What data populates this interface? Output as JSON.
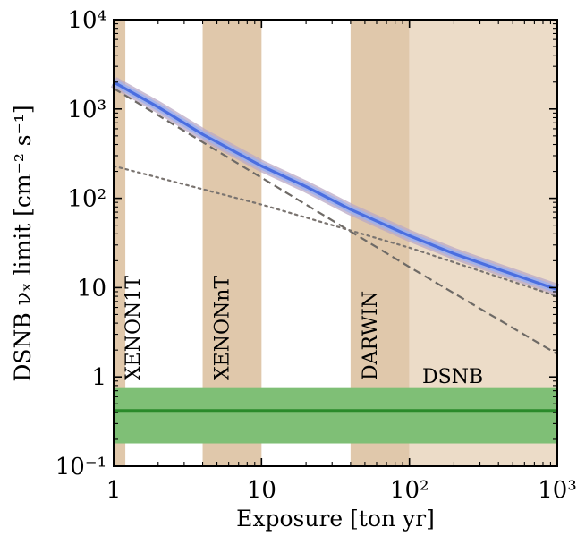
{
  "chart_data": {
    "type": "line",
    "title": "",
    "xlabel": "Exposure [ton yr]",
    "ylabel": "DSNB νₓ limit [cm⁻² s⁻¹]",
    "xscale": "log",
    "yscale": "log",
    "xlim": [
      1,
      1000
    ],
    "ylim": [
      0.1,
      10000
    ],
    "grid": false,
    "x_ticks": [
      {
        "value": 1,
        "label": "1"
      },
      {
        "value": 10,
        "label": "10"
      },
      {
        "value": 100,
        "label": "10²"
      },
      {
        "value": 1000,
        "label": "10³"
      }
    ],
    "y_ticks": [
      {
        "value": 0.1,
        "label": "10⁻¹"
      },
      {
        "value": 1,
        "label": "1"
      },
      {
        "value": 10,
        "label": "10"
      },
      {
        "value": 100,
        "label": "10²"
      },
      {
        "value": 1000,
        "label": "10³"
      },
      {
        "value": 10000,
        "label": "10⁴"
      }
    ],
    "regions": [
      {
        "label": "XENON1T",
        "x_range": [
          1,
          1.2
        ],
        "color": "#e0c8ab"
      },
      {
        "label": "XENONnT",
        "x_range": [
          4,
          10
        ],
        "color": "#e0c8ab"
      },
      {
        "label": "DARWIN",
        "x_range": [
          40,
          100
        ],
        "color": "#e0c8ab"
      },
      {
        "label": "DSNB",
        "x_range": [
          100,
          1000
        ],
        "color": "#ecdcc8"
      }
    ],
    "dsnb_band": {
      "y_center": 0.42,
      "y_range": [
        0.18,
        0.75
      ],
      "band_color": "#7fbf76",
      "line_color": "#2a8a2a"
    },
    "series": [
      {
        "style": "solid",
        "color": "#4a6ee0",
        "x": [
          1,
          2,
          4,
          10,
          20,
          40,
          100,
          200,
          400,
          1000
        ],
        "y": [
          2000,
          1050,
          520,
          230,
          135,
          75,
          38,
          24,
          16,
          9.5
        ]
      },
      {
        "style": "dashed",
        "color": "#6e6a66",
        "x": [
          1,
          10,
          100,
          1000
        ],
        "y": [
          1700,
          170,
          17,
          1.8
        ]
      },
      {
        "style": "dotted",
        "color": "#7a7470",
        "x": [
          1,
          10,
          100,
          1000
        ],
        "y": [
          230,
          85,
          28,
          8
        ]
      }
    ]
  }
}
